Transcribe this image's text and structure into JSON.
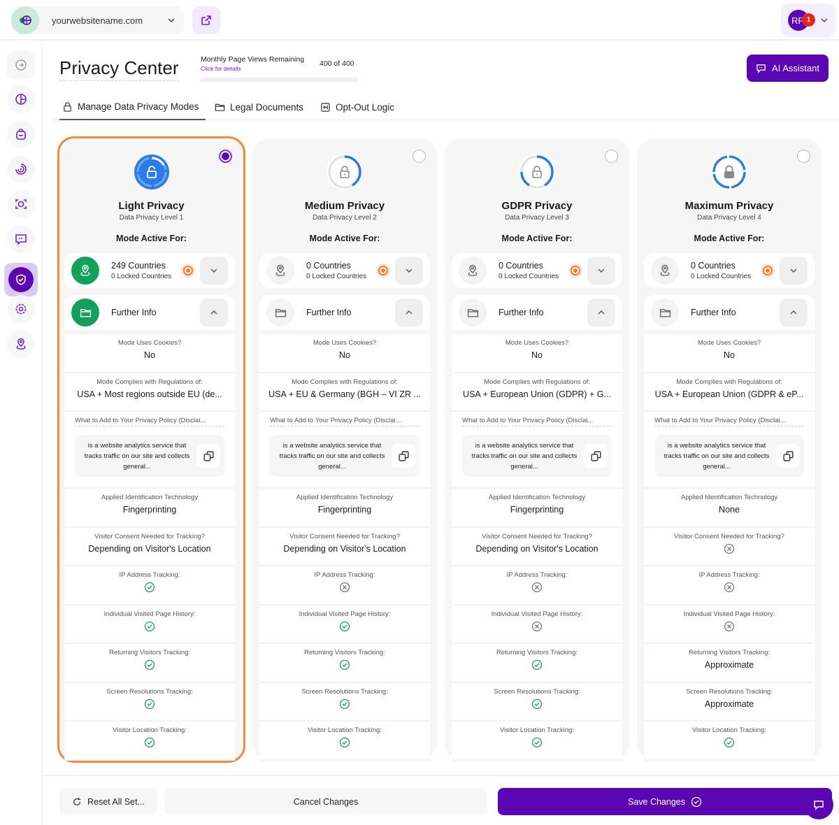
{
  "topbar": {
    "site": "yourwebsitename.com",
    "user_initials": "RF",
    "notifications": "1"
  },
  "header": {
    "title": "Privacy Center",
    "pageviews_label": "Monthly Page Views Remaining",
    "pageviews_link": "Click for details",
    "pageviews_value": "400 of 400",
    "pageviews_remaining_percent": 100,
    "ai_button": "AI Assistant"
  },
  "tabs": [
    {
      "label": "Manage Data Privacy Modes",
      "active": true
    },
    {
      "label": "Legal Documents"
    },
    {
      "label": "Opt-Out Logic"
    }
  ],
  "sidebar": [
    "logout",
    "analytics",
    "shop",
    "tracking",
    "scan",
    "chat",
    "privacy",
    "settings",
    "location"
  ],
  "colors": {
    "accent": "#5b05b3",
    "selected_border": "#f28a3c",
    "green": "#14a05a",
    "blue": "#2b7be9"
  },
  "labels": {
    "mode_active": "Mode Active For:",
    "further_info": "Further Info",
    "cookies": "Mode Uses Cookies?",
    "regulations": "Mode Complies with Regulations of:",
    "policy": "What to Add to Your Privacy Policy (Disclai...",
    "policy_text": "is a website analytics service that tracks traffic on our site and collects general...",
    "tech": "Applied Identification Technology",
    "consent": "Visitor Consent Needed for Tracking?",
    "ip": "IP Address Tracking:",
    "history": "Individual Visited Page History:",
    "returning": "Returning Visitors Tracking:",
    "screen": "Screen Resolutions Tracking:",
    "location": "Visitor Location Tracking:"
  },
  "cards": [
    {
      "name": "Light Privacy",
      "level": "Data Privacy Level 1",
      "selected": true,
      "countries": "249 Countries",
      "locked": "0 Locked Countries",
      "cookies": "No",
      "regulations": "USA + Most regions outside EU (de...",
      "tech": "Fingerprinting",
      "consent": "Depending on Visitor's Location",
      "ip": "check",
      "history": "check",
      "returning": "check",
      "screen": "check",
      "location": "check"
    },
    {
      "name": "Medium Privacy",
      "level": "Data Privacy Level 2",
      "selected": false,
      "countries": "0 Countries",
      "locked": "0 Locked Countries",
      "cookies": "No",
      "regulations": "USA + EU & Germany (BGH – VI ZR ...",
      "tech": "Fingerprinting",
      "consent": "Depending on Visitor's Location",
      "ip": "x",
      "history": "check",
      "returning": "check",
      "screen": "check",
      "location": "check"
    },
    {
      "name": "GDPR Privacy",
      "level": "Data Privacy Level 3",
      "selected": false,
      "countries": "0 Countries",
      "locked": "0 Locked Countries",
      "cookies": "No",
      "regulations": "USA + European Union (GDPR) + G...",
      "tech": "Fingerprinting",
      "consent": "Depending on Visitor's Location",
      "ip": "x",
      "history": "x",
      "returning": "check",
      "screen": "check",
      "location": "check"
    },
    {
      "name": "Maximum Privacy",
      "level": "Data Privacy Level 4",
      "selected": false,
      "countries": "0 Countries",
      "locked": "0 Locked Countries",
      "cookies": "No",
      "regulations": "USA + European Union (GDPR & eP...",
      "tech": "None",
      "consent": "x",
      "ip": "x",
      "history": "x",
      "returning": "Approximate",
      "screen": "Approximate",
      "location": "check"
    }
  ],
  "footer": {
    "reset": "Reset All Set...",
    "cancel": "Cancel Changes",
    "save": "Save Changes"
  }
}
